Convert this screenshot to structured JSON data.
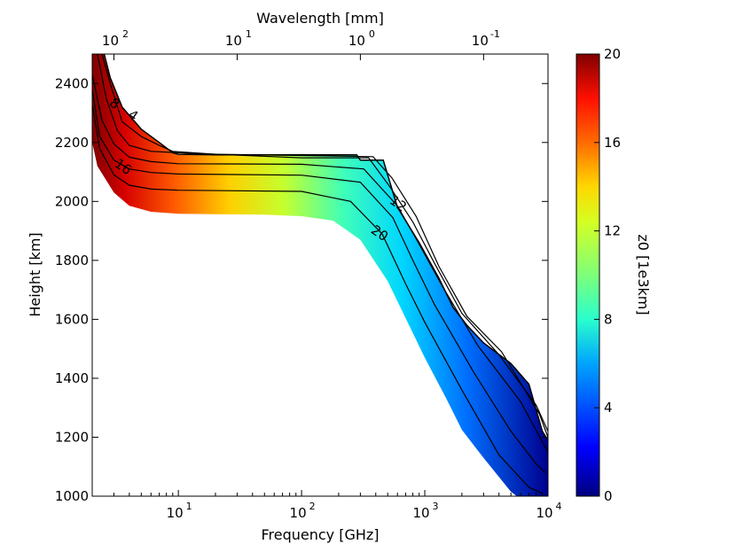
{
  "chart_data": {
    "type": "contour",
    "xlabel": "Frequency [GHz]",
    "ylabel": "Height [km]",
    "top_xlabel": "Wavelength [mm]",
    "x_scale": "log",
    "xlim": [
      2,
      10000
    ],
    "ylim": [
      1000,
      2500
    ],
    "x_ticks": [
      {
        "value": 10,
        "label": "10",
        "exp": "1"
      },
      {
        "value": 100,
        "label": "10",
        "exp": "2"
      },
      {
        "value": 1000,
        "label": "10",
        "exp": "3"
      },
      {
        "value": 10000,
        "label": "10",
        "exp": "4"
      }
    ],
    "y_ticks": [
      1000,
      1200,
      1400,
      1600,
      1800,
      2000,
      2200,
      2400
    ],
    "top_ticks": [
      {
        "freq_ghz": 3,
        "label": "10",
        "exp": "2"
      },
      {
        "freq_ghz": 30,
        "label": "10",
        "exp": "1"
      },
      {
        "freq_ghz": 300,
        "label": "10",
        "exp": "0"
      },
      {
        "freq_ghz": 3000,
        "label": "10",
        "exp": "-1"
      }
    ],
    "colorbar": {
      "label": "z0 [1e3km]",
      "range": [
        0,
        20
      ],
      "ticks": [
        0,
        4,
        8,
        12,
        16,
        20
      ]
    },
    "boundary_z0": 20,
    "filled_boundary": [
      [
        2,
        2200
      ],
      [
        2.2,
        2120
      ],
      [
        3,
        2030
      ],
      [
        4,
        1985
      ],
      [
        6,
        1965
      ],
      [
        10,
        1958
      ],
      [
        50,
        1955
      ],
      [
        100,
        1950
      ],
      [
        180,
        1935
      ],
      [
        300,
        1870
      ],
      [
        500,
        1730
      ],
      [
        1000,
        1470
      ],
      [
        1500,
        1330
      ],
      [
        2000,
        1225
      ],
      [
        3000,
        1130
      ],
      [
        5000,
        1015
      ],
      [
        5600,
        1000
      ]
    ],
    "outer_edge": [
      [
        2.5,
        2500
      ],
      [
        2.8,
        2420
      ],
      [
        3.5,
        2320
      ],
      [
        5,
        2245
      ],
      [
        7,
        2200
      ],
      [
        9,
        2165
      ],
      [
        10,
        2160
      ],
      [
        20,
        2158
      ],
      [
        100,
        2158
      ],
      [
        280,
        2158
      ],
      [
        300,
        2140
      ],
      [
        460,
        2140
      ],
      [
        600,
        1980
      ],
      [
        900,
        1860
      ],
      [
        1300,
        1740
      ],
      [
        1700,
        1640
      ],
      [
        2200,
        1580
      ],
      [
        3000,
        1520
      ],
      [
        5000,
        1450
      ],
      [
        7000,
        1380
      ],
      [
        9000,
        1220
      ],
      [
        10000,
        1190
      ]
    ],
    "contour_levels": [
      {
        "level": 20,
        "label": "20",
        "label_at": [
          410,
          1880
        ],
        "points": [
          [
            2,
            2330
          ],
          [
            2.3,
            2180
          ],
          [
            3,
            2090
          ],
          [
            4,
            2055
          ],
          [
            6,
            2042
          ],
          [
            10,
            2038
          ],
          [
            100,
            2034
          ],
          [
            250,
            2000
          ],
          [
            450,
            1890
          ],
          [
            700,
            1720
          ],
          [
            1000,
            1590
          ],
          [
            2000,
            1360
          ],
          [
            4000,
            1140
          ],
          [
            7000,
            1030
          ],
          [
            9000,
            1010
          ]
        ]
      },
      {
        "level": 16,
        "label": "16",
        "label_at": [
          3.4,
          2105
        ],
        "points": [
          [
            2,
            2380
          ],
          [
            2.3,
            2220
          ],
          [
            3,
            2140
          ],
          [
            4,
            2110
          ],
          [
            6,
            2098
          ],
          [
            10,
            2093
          ],
          [
            100,
            2089
          ],
          [
            300,
            2065
          ],
          [
            550,
            1945
          ],
          [
            800,
            1800
          ],
          [
            1200,
            1650
          ],
          [
            2500,
            1420
          ],
          [
            5000,
            1220
          ],
          [
            8000,
            1110
          ],
          [
            9500,
            1080
          ]
        ]
      },
      {
        "level": 12,
        "label": "12",
        "label_at": [
          580,
          1980
        ],
        "points": [
          [
            2,
            2430
          ],
          [
            2.4,
            2275
          ],
          [
            3,
            2195
          ],
          [
            4,
            2150
          ],
          [
            6,
            2135
          ],
          [
            10,
            2128
          ],
          [
            100,
            2126
          ],
          [
            320,
            2110
          ],
          [
            600,
            1985
          ],
          [
            900,
            1855
          ],
          [
            1400,
            1710
          ],
          [
            2700,
            1510
          ],
          [
            6000,
            1320
          ],
          [
            9000,
            1185
          ],
          [
            10000,
            1150
          ]
        ]
      },
      {
        "level": 8,
        "label": "8",
        "label_at": [
          2.9,
          2320
        ],
        "points": [
          [
            2.2,
            2500
          ],
          [
            2.6,
            2350
          ],
          [
            3.2,
            2240
          ],
          [
            4,
            2190
          ],
          [
            6,
            2170
          ],
          [
            10,
            2165
          ],
          [
            100,
            2148
          ],
          [
            350,
            2148
          ],
          [
            520,
            2050
          ],
          [
            800,
            1930
          ],
          [
            1200,
            1790
          ],
          [
            2000,
            1620
          ],
          [
            4000,
            1480
          ],
          [
            8000,
            1310
          ],
          [
            10000,
            1220
          ]
        ]
      },
      {
        "level": 4,
        "label": "4",
        "label_at": [
          4.1,
          2280
        ],
        "points": [
          [
            2.4,
            2500
          ],
          [
            2.8,
            2400
          ],
          [
            3.5,
            2270
          ],
          [
            5,
            2220
          ],
          [
            7,
            2190
          ],
          [
            9,
            2170
          ],
          [
            20,
            2160
          ],
          [
            380,
            2152
          ],
          [
            540,
            2080
          ],
          [
            850,
            1950
          ],
          [
            1300,
            1780
          ],
          [
            2200,
            1610
          ],
          [
            4200,
            1490
          ],
          [
            8500,
            1280
          ],
          [
            10000,
            1200
          ]
        ]
      }
    ]
  }
}
